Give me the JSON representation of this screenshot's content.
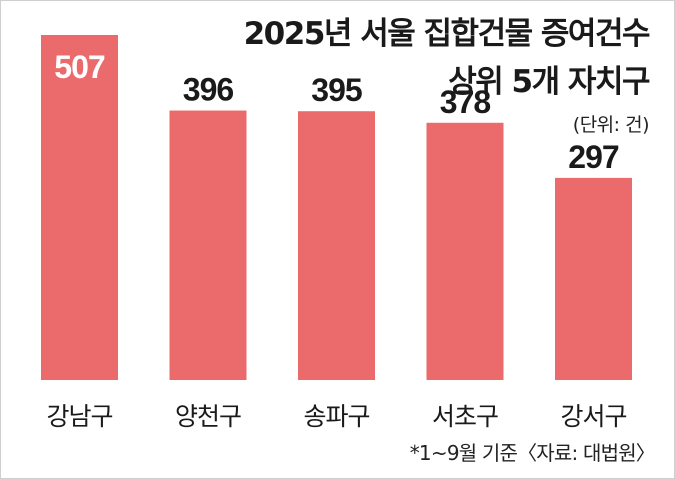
{
  "chart_data": {
    "type": "bar",
    "title_line1": "2025년 서울 집합건물 증여건수",
    "title_line2": "상위 5개 자치구",
    "unit": "(단위: 건)",
    "note": "*1~9월 기준〈자료: 대법원〉",
    "categories": [
      "강남구",
      "양천구",
      "송파구",
      "서초구",
      "강서구"
    ],
    "values": [
      507,
      396,
      395,
      378,
      297
    ],
    "ylim": [
      0,
      507
    ],
    "bar_color": "#eb6b6d",
    "highlight_value_color": "#ffffff",
    "value_color": "#1a1a1a",
    "grid": false,
    "legend": "none"
  }
}
